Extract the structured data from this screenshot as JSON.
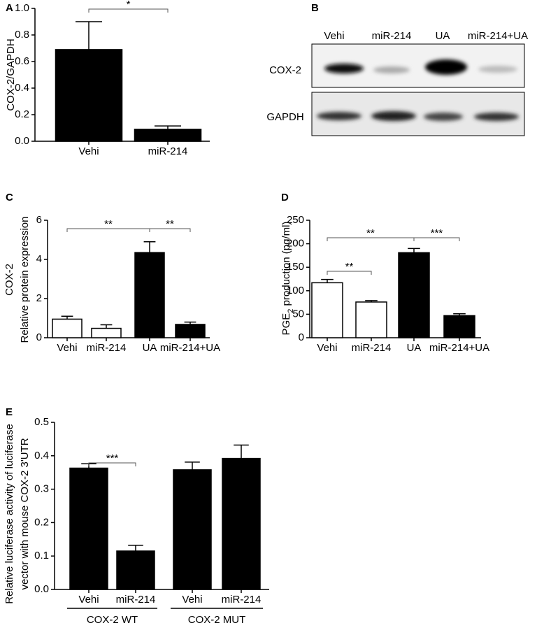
{
  "chart_data": [
    {
      "type": "bar",
      "panel": "A",
      "ylabel": "COX-2/GAPDH",
      "categories": [
        "Vehi",
        "miR-214"
      ],
      "values": [
        0.69,
        0.09
      ],
      "errors": [
        0.21,
        0.025
      ],
      "colors": [
        "#000000",
        "#000000"
      ],
      "ylim": [
        0,
        1
      ],
      "yticks": [
        {
          "value": 0,
          "label": "0.0"
        },
        0.2,
        0.4,
        0.6,
        0.8,
        {
          "value": 1,
          "label": "1.0"
        }
      ],
      "annotations": [
        "*"
      ]
    },
    {
      "type": "bar",
      "panel": "C",
      "ylabel": [
        "COX-2",
        "Relative protein expression"
      ],
      "categories": [
        "Vehi",
        "miR-214",
        "UA",
        "miR-214+UA"
      ],
      "values": [
        0.95,
        0.48,
        4.35,
        0.68
      ],
      "errors": [
        0.15,
        0.18,
        0.55,
        0.12
      ],
      "colors": [
        "#ffffff",
        "#ffffff",
        "#000000",
        "#000000"
      ],
      "ylim": [
        0,
        6
      ],
      "yticks": [
        0,
        2,
        4,
        6
      ],
      "annotations": [
        "**",
        "**"
      ]
    },
    {
      "type": "bar",
      "panel": "D",
      "ylabel": [
        "PGE",
        "2",
        " production (pg/ml)"
      ],
      "categories": [
        "Vehi",
        "miR-214",
        "UA",
        "miR-214+UA"
      ],
      "values": [
        117,
        76,
        181,
        47
      ],
      "errors": [
        7,
        3,
        9,
        4
      ],
      "colors": [
        "#ffffff",
        "#ffffff",
        "#000000",
        "#000000"
      ],
      "ylim": [
        0,
        250
      ],
      "yticks": [
        0,
        50,
        100,
        150,
        200,
        250
      ],
      "annotations": [
        "**",
        "**",
        "***"
      ]
    },
    {
      "type": "bar",
      "panel": "E",
      "ylabel": [
        "Relative luciferase activity of luciferase",
        "vector with mouse COX-2 3'UTR"
      ],
      "categories": [
        "Vehi",
        "miR-214",
        "Vehi",
        "miR-214"
      ],
      "groups": [
        "COX-2 WT",
        "COX-2 MUT"
      ],
      "values": [
        0.363,
        0.115,
        0.358,
        0.392
      ],
      "errors": [
        0.013,
        0.017,
        0.023,
        0.04
      ],
      "colors": [
        "#000000",
        "#000000",
        "#000000",
        "#000000"
      ],
      "ylim": [
        0,
        0.5
      ],
      "yticks": [
        {
          "value": 0,
          "label": "0.0"
        },
        0.1,
        0.2,
        0.3,
        0.4,
        0.5
      ],
      "annotations": [
        "***"
      ]
    }
  ],
  "blot": {
    "panel": "B",
    "lanes": [
      "Vehi",
      "miR-214",
      "UA",
      "miR-214+UA"
    ],
    "rows": [
      "COX-2",
      "GAPDH"
    ]
  }
}
